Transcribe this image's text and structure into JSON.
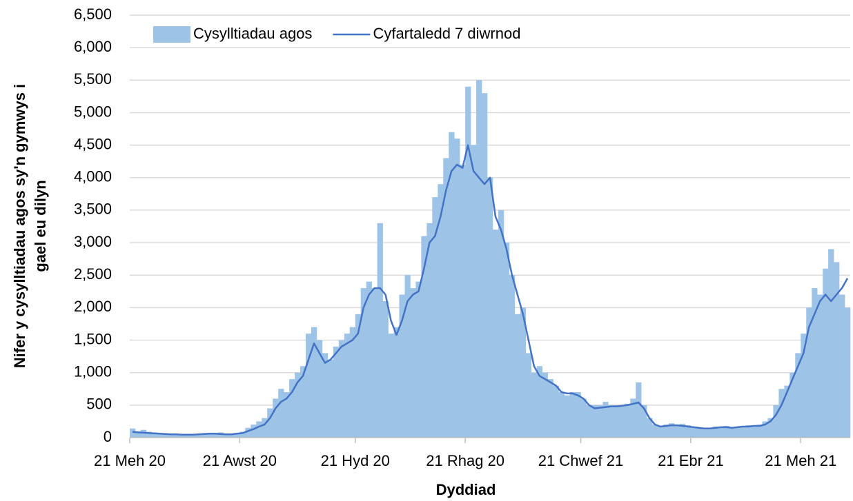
{
  "chart_data": {
    "type": "bar_line",
    "xlabel": "Dyddiad",
    "ylabel": [
      "Nifer y cysylltiadau agos sy'n gymwys i",
      "gael eu dilyn"
    ],
    "categories": [
      "21 Meh 20",
      null,
      null,
      null,
      null,
      null,
      null,
      null,
      null,
      null,
      null,
      null,
      null,
      null,
      null,
      null,
      null,
      null,
      null,
      null,
      "21 Awst 20",
      null,
      null,
      null,
      null,
      null,
      null,
      null,
      null,
      null,
      null,
      null,
      null,
      null,
      null,
      null,
      null,
      null,
      null,
      null,
      null,
      "21 Hyd 20",
      null,
      null,
      null,
      null,
      null,
      null,
      null,
      null,
      null,
      null,
      null,
      null,
      null,
      null,
      null,
      null,
      null,
      null,
      null,
      "21 Rhag 20",
      null,
      null,
      null,
      null,
      null,
      null,
      null,
      null,
      null,
      null,
      null,
      null,
      null,
      null,
      null,
      null,
      null,
      null,
      null,
      null,
      "21 Chwef 21",
      null,
      null,
      null,
      null,
      null,
      null,
      null,
      null,
      null,
      null,
      null,
      null,
      null,
      null,
      null,
      null,
      null,
      null,
      null,
      "21 Ebr 21",
      null,
      null,
      null,
      null,
      null,
      null,
      null,
      null,
      null,
      null,
      null,
      null,
      null,
      null,
      null,
      null,
      null,
      null,
      null,
      "21 Meh 21",
      null,
      null,
      null,
      null,
      null,
      null,
      null,
      null
    ],
    "series": [
      {
        "name": "Cysylltiadau agos",
        "kind": "bar",
        "color": "#9dc3e6",
        "values": [
          140,
          100,
          120,
          90,
          80,
          70,
          60,
          60,
          50,
          50,
          40,
          40,
          50,
          60,
          70,
          60,
          80,
          50,
          60,
          70,
          90,
          150,
          200,
          250,
          300,
          450,
          600,
          750,
          700,
          900,
          1000,
          1100,
          1600,
          1700,
          1500,
          1300,
          1200,
          1400,
          1500,
          1600,
          1700,
          1900,
          2300,
          2400,
          2300,
          3300,
          2100,
          1600,
          1700,
          2200,
          2500,
          2300,
          2400,
          3100,
          3300,
          3700,
          3900,
          4300,
          4700,
          4600,
          4200,
          5400,
          4500,
          5500,
          5300,
          4000,
          3200,
          3500,
          3000,
          2500,
          1900,
          2000,
          1300,
          1000,
          1100,
          1000,
          900,
          800,
          700,
          650,
          700,
          700,
          600,
          500,
          500,
          500,
          550,
          500,
          500,
          500,
          520,
          600,
          850,
          500,
          300,
          200,
          180,
          200,
          220,
          180,
          210,
          190,
          150,
          160,
          140,
          150,
          170,
          160,
          180,
          150,
          170,
          160,
          190,
          180,
          200,
          250,
          300,
          500,
          750,
          800,
          1000,
          1300,
          1600,
          2000,
          2300,
          2200,
          2600,
          2900,
          2700,
          2200,
          2000
        ]
      },
      {
        "name": "Cyfartaledd 7 diwrnod",
        "kind": "line",
        "color": "#4472c4",
        "values": [
          90,
          80,
          75,
          70,
          65,
          60,
          55,
          50,
          50,
          45,
          45,
          45,
          50,
          55,
          60,
          60,
          55,
          50,
          50,
          60,
          70,
          100,
          130,
          170,
          200,
          300,
          450,
          550,
          600,
          700,
          850,
          950,
          1200,
          1450,
          1300,
          1150,
          1200,
          1300,
          1400,
          1450,
          1500,
          1600,
          2000,
          2200,
          2300,
          2300,
          2200,
          1800,
          1580,
          1800,
          2100,
          2200,
          2250,
          2600,
          3000,
          3100,
          3400,
          3800,
          4100,
          4200,
          4150,
          4500,
          4100,
          4000,
          3900,
          4000,
          3400,
          3200,
          2900,
          2500,
          2200,
          1900,
          1500,
          1100,
          950,
          900,
          850,
          800,
          700,
          680,
          680,
          650,
          600,
          500,
          450,
          460,
          470,
          480,
          480,
          490,
          500,
          520,
          540,
          450,
          300,
          200,
          170,
          180,
          190,
          190,
          180,
          170,
          160,
          150,
          140,
          140,
          150,
          160,
          160,
          150,
          160,
          170,
          170,
          180,
          180,
          200,
          250,
          350,
          500,
          700,
          900,
          1100,
          1300,
          1700,
          1900,
          2100,
          2200,
          2100,
          2200,
          2300,
          2450
        ]
      }
    ],
    "ylim": [
      0,
      6500
    ],
    "yticks": [
      0,
      500,
      {
        "value": 1000,
        "label": "1,000"
      },
      {
        "value": 1500,
        "label": "1,500"
      },
      {
        "value": 2000,
        "label": "2,000"
      },
      {
        "value": 2500,
        "label": "2,500"
      },
      {
        "value": 3000,
        "label": "3,000"
      },
      {
        "value": 3500,
        "label": "3,500"
      },
      {
        "value": 4000,
        "label": "4,000"
      },
      {
        "value": 4500,
        "label": "4,500"
      },
      {
        "value": 5000,
        "label": "5,000"
      },
      {
        "value": 5500,
        "label": "5,500"
      },
      {
        "value": 6000,
        "label": "6,000"
      },
      {
        "value": 6500,
        "label": "6,500"
      }
    ],
    "grid": true,
    "legend": "top"
  }
}
